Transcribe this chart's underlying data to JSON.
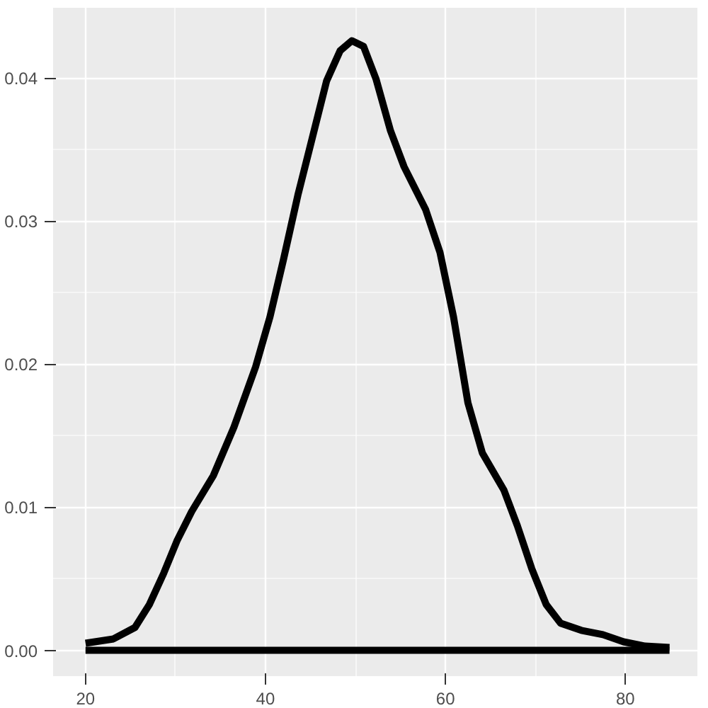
{
  "chart_data": {
    "type": "line",
    "x": [
      20,
      23.1,
      25.5,
      27.1,
      28.7,
      30.2,
      31.8,
      34.2,
      36.5,
      38.9,
      40.5,
      42,
      43.6,
      45.2,
      46.8,
      48.3,
      49.6,
      50.9,
      52.3,
      53.9,
      55.4,
      57.8,
      59.4,
      60.9,
      62.5,
      64.1,
      66.5,
      68,
      69.6,
      71.2,
      72.8,
      75.1,
      77.5,
      79.8,
      82.2,
      84.9
    ],
    "series": [
      {
        "color": "#000000",
        "values": [
          0.0005,
          0.0008,
          0.0016,
          0.0032,
          0.0054,
          0.0077,
          0.0097,
          0.0122,
          0.0156,
          0.0198,
          0.0233,
          0.0273,
          0.0318,
          0.0358,
          0.0398,
          0.0419,
          0.0426,
          0.0422,
          0.0399,
          0.0363,
          0.0338,
          0.0308,
          0.0278,
          0.0233,
          0.0173,
          0.0138,
          0.0112,
          0.0087,
          0.0057,
          0.0032,
          0.0019,
          0.0014,
          0.0011,
          0.0006,
          0.0003,
          0.0002
        ]
      },
      {
        "color": "#000000",
        "x": [
          20,
          84.9
        ],
        "values": [
          0,
          0
        ]
      }
    ],
    "xlim": [
      16.4,
      88.0
    ],
    "ylim": [
      -0.0018,
      0.0449
    ],
    "xticks": [
      20,
      40,
      60,
      80
    ],
    "yticks": [
      {
        "value": 0,
        "label": "0.00"
      },
      {
        "value": 0.01,
        "label": "0.01"
      },
      {
        "value": 0.02,
        "label": "0.02"
      },
      {
        "value": 0.03,
        "label": "0.03"
      },
      {
        "value": 0.04,
        "label": "0.04"
      }
    ],
    "grid": true
  }
}
